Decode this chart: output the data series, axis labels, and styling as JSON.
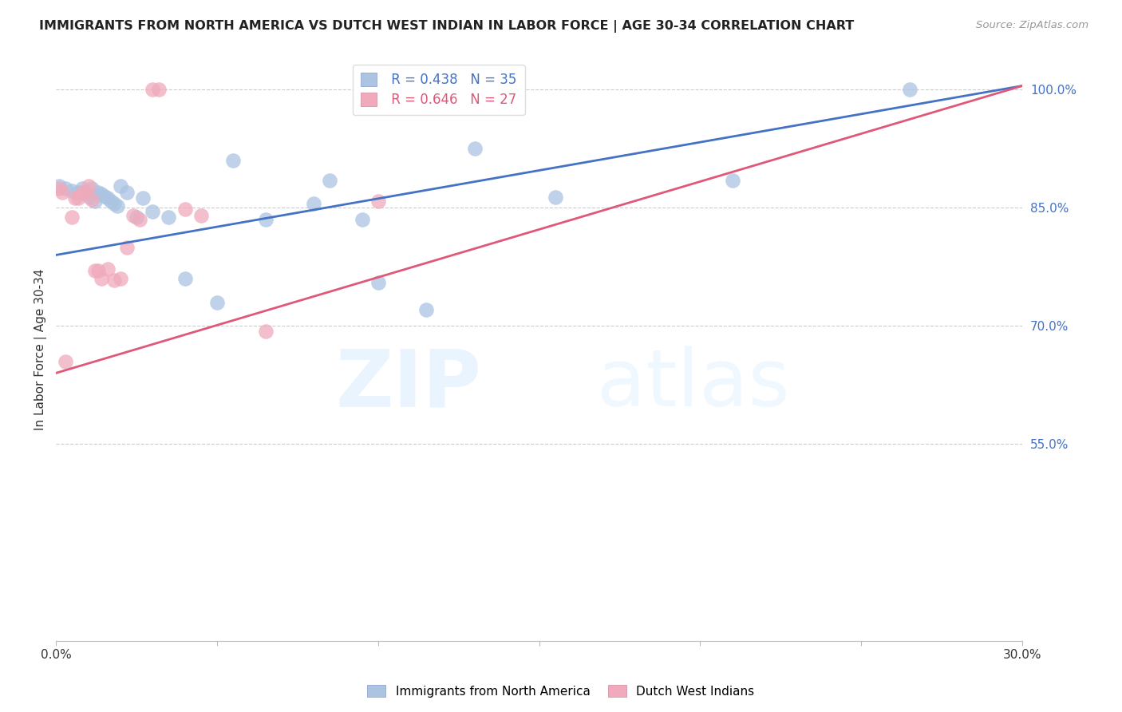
{
  "title": "IMMIGRANTS FROM NORTH AMERICA VS DUTCH WEST INDIAN IN LABOR FORCE | AGE 30-34 CORRELATION CHART",
  "source": "Source: ZipAtlas.com",
  "ylabel": "In Labor Force | Age 30-34",
  "xlim": [
    0.0,
    0.3
  ],
  "ylim": [
    0.3,
    1.04
  ],
  "yticks_right": [
    1.0,
    0.85,
    0.7,
    0.55
  ],
  "ytick_right_labels": [
    "100.0%",
    "85.0%",
    "70.0%",
    "55.0%"
  ],
  "blue_R": 0.438,
  "blue_N": 35,
  "pink_R": 0.646,
  "pink_N": 27,
  "blue_color": "#aac4e2",
  "pink_color": "#f0aabb",
  "blue_line_color": "#4472c4",
  "pink_line_color": "#e05878",
  "legend_blue_label": "Immigrants from North America",
  "legend_pink_label": "Dutch West Indians",
  "watermark_zip": "ZIP",
  "watermark_atlas": "atlas",
  "blue_x": [
    0.001,
    0.003,
    0.005,
    0.007,
    0.008,
    0.009,
    0.01,
    0.011,
    0.012,
    0.013,
    0.014,
    0.015,
    0.016,
    0.017,
    0.018,
    0.019,
    0.02,
    0.022,
    0.025,
    0.027,
    0.03,
    0.035,
    0.04,
    0.05,
    0.055,
    0.065,
    0.08,
    0.085,
    0.095,
    0.1,
    0.115,
    0.13,
    0.155,
    0.21,
    0.265
  ],
  "blue_y": [
    0.878,
    0.875,
    0.872,
    0.87,
    0.875,
    0.868,
    0.865,
    0.875,
    0.858,
    0.87,
    0.868,
    0.865,
    0.862,
    0.858,
    0.855,
    0.852,
    0.878,
    0.87,
    0.838,
    0.862,
    0.845,
    0.838,
    0.76,
    0.73,
    0.91,
    0.835,
    0.855,
    0.885,
    0.835,
    0.755,
    0.72,
    0.925,
    0.863,
    0.885,
    1.0
  ],
  "pink_x": [
    0.001,
    0.002,
    0.003,
    0.005,
    0.006,
    0.007,
    0.008,
    0.009,
    0.01,
    0.011,
    0.012,
    0.013,
    0.014,
    0.016,
    0.018,
    0.02,
    0.022,
    0.024,
    0.026,
    0.03,
    0.032,
    0.04,
    0.045,
    0.065,
    0.1,
    0.105,
    0.12
  ],
  "pink_y": [
    0.875,
    0.87,
    0.655,
    0.838,
    0.862,
    0.862,
    0.87,
    0.87,
    0.878,
    0.86,
    0.77,
    0.77,
    0.76,
    0.772,
    0.758,
    0.76,
    0.8,
    0.84,
    0.835,
    1.0,
    1.0,
    0.848,
    0.84,
    0.693,
    0.858,
    1.0,
    1.0
  ],
  "blue_trend_x0": 0.0,
  "blue_trend_y0": 0.79,
  "blue_trend_x1": 0.3,
  "blue_trend_y1": 1.005,
  "pink_trend_x0": 0.0,
  "pink_trend_y0": 0.64,
  "pink_trend_x1": 0.3,
  "pink_trend_y1": 1.005
}
